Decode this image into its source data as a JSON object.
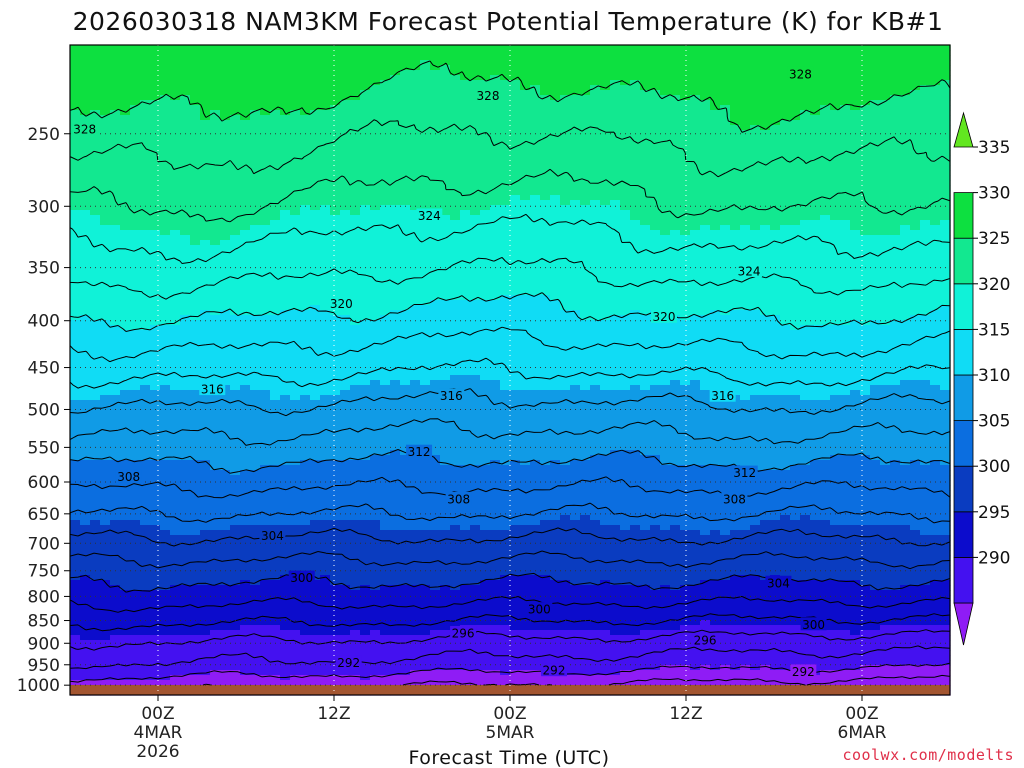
{
  "chart_data": {
    "type": "contour",
    "title": "2026030318 NAM3KM Forecast Potential Temperature (K) for KB#1",
    "xlabel": "Forecast Time (UTC)",
    "ylabel": "",
    "credit": "coolwx.com/modelts",
    "x_range_hours": [
      -6,
      54
    ],
    "x_ticks": [
      {
        "hour": 0,
        "lines": [
          "00Z",
          "4MAR",
          "2026"
        ]
      },
      {
        "hour": 12,
        "lines": [
          "12Z"
        ]
      },
      {
        "hour": 24,
        "lines": [
          "00Z",
          "5MAR"
        ]
      },
      {
        "hour": 36,
        "lines": [
          "12Z"
        ]
      },
      {
        "hour": 48,
        "lines": [
          "00Z",
          "6MAR"
        ]
      }
    ],
    "y_axis": {
      "top_hpa": 200,
      "bottom_hpa": 1025,
      "scale": "log"
    },
    "y_ticks": [
      250,
      300,
      350,
      400,
      450,
      500,
      550,
      600,
      650,
      700,
      750,
      800,
      850,
      900,
      950,
      1000
    ],
    "colorbar": {
      "levels": [
        290,
        295,
        300,
        305,
        310,
        315,
        320,
        325,
        330,
        335
      ],
      "colors": [
        "#8f1cf5",
        "#4411f0",
        "#0c0ccc",
        "#0a3cc0",
        "#0b6ee0",
        "#109be6",
        "#10dcf5",
        "#10f2d8",
        "#12e890",
        "#0de040",
        "#62e620"
      ]
    },
    "contour_levels": [
      288,
      290,
      292,
      294,
      296,
      298,
      300,
      302,
      304,
      306,
      308,
      310,
      312,
      314,
      316,
      318,
      320,
      322,
      324,
      326,
      328,
      330
    ],
    "theta_profile": [
      {
        "p": 1000,
        "theta": 289
      },
      {
        "p": 950,
        "theta": 292
      },
      {
        "p": 900,
        "theta": 294
      },
      {
        "p": 850,
        "theta": 296.5
      },
      {
        "p": 800,
        "theta": 299
      },
      {
        "p": 750,
        "theta": 301
      },
      {
        "p": 700,
        "theta": 303.5
      },
      {
        "p": 650,
        "theta": 306
      },
      {
        "p": 600,
        "theta": 308.5
      },
      {
        "p": 550,
        "theta": 311
      },
      {
        "p": 500,
        "theta": 313.5
      },
      {
        "p": 450,
        "theta": 316.5
      },
      {
        "p": 400,
        "theta": 319.5
      },
      {
        "p": 350,
        "theta": 322.5
      },
      {
        "p": 300,
        "theta": 325.5
      },
      {
        "p": 250,
        "theta": 328.5
      },
      {
        "p": 200,
        "theta": 332
      }
    ],
    "contour_labels": [
      {
        "text": "328",
        "hour": -5,
        "p": 247
      },
      {
        "text": "328",
        "hour": 22.5,
        "p": 227
      },
      {
        "text": "328",
        "hour": 43.8,
        "p": 215
      },
      {
        "text": "324",
        "hour": 18.5,
        "p": 307
      },
      {
        "text": "324",
        "hour": 40.3,
        "p": 353
      },
      {
        "text": "320",
        "hour": 12.5,
        "p": 383
      },
      {
        "text": "320",
        "hour": 34.5,
        "p": 396
      },
      {
        "text": "316",
        "hour": 3.7,
        "p": 475
      },
      {
        "text": "316",
        "hour": 20,
        "p": 483
      },
      {
        "text": "316",
        "hour": 38.5,
        "p": 483
      },
      {
        "text": "312",
        "hour": 17.8,
        "p": 556
      },
      {
        "text": "312",
        "hour": 40,
        "p": 586
      },
      {
        "text": "308",
        "hour": -2,
        "p": 592
      },
      {
        "text": "308",
        "hour": 20.5,
        "p": 626
      },
      {
        "text": "308",
        "hour": 39.3,
        "p": 626
      },
      {
        "text": "304",
        "hour": 7.8,
        "p": 686
      },
      {
        "text": "304",
        "hour": 42.3,
        "p": 773
      },
      {
        "text": "300",
        "hour": 9.8,
        "p": 763
      },
      {
        "text": "300",
        "hour": 26,
        "p": 826
      },
      {
        "text": "300",
        "hour": 44.7,
        "p": 858
      },
      {
        "text": "296",
        "hour": 20.8,
        "p": 877
      },
      {
        "text": "296",
        "hour": 37.3,
        "p": 893
      },
      {
        "text": "292",
        "hour": 13,
        "p": 945
      },
      {
        "text": "292",
        "hour": 27,
        "p": 963
      },
      {
        "text": "292",
        "hour": 44,
        "p": 966
      }
    ]
  }
}
